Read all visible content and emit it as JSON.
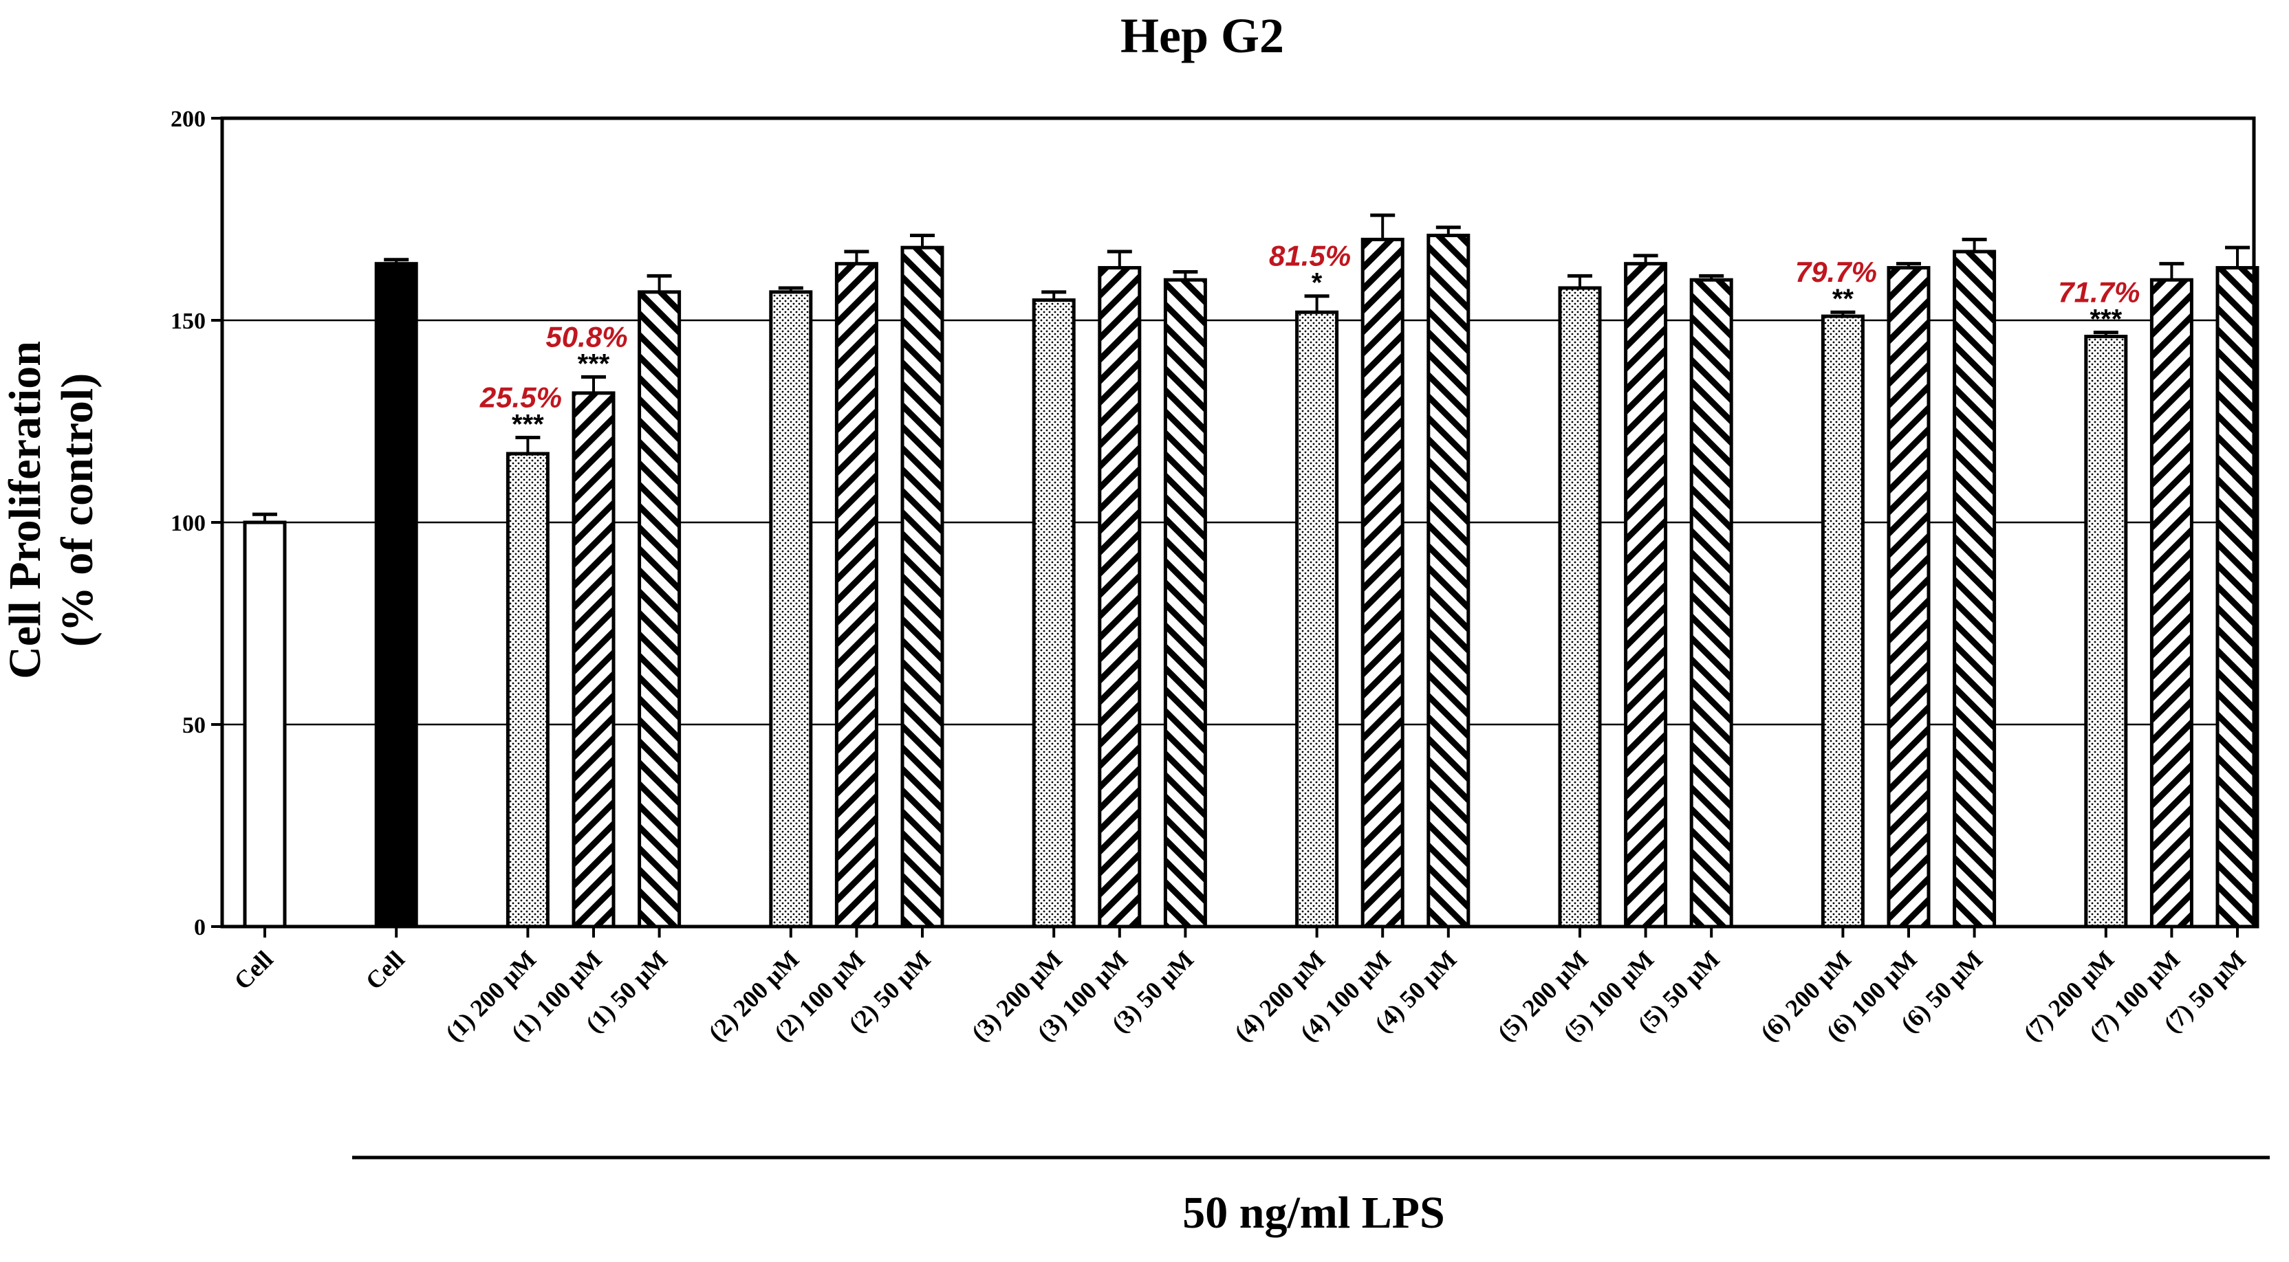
{
  "chart_data": {
    "type": "bar",
    "title": "Hep G2",
    "ylabel_line1": "Cell Proliferation",
    "ylabel_line2": "(% of control)",
    "group_label": "50 ng/ml LPS",
    "ylim": [
      0,
      200
    ],
    "yticks": [
      0,
      50,
      100,
      150,
      200
    ],
    "grid": true,
    "colors": {
      "bar_edge": "#000000",
      "annotation": "#c0161f",
      "grid": "#000000"
    },
    "categories": [
      "Cell",
      "Cell",
      "(1) 200 μM",
      "(1) 100 μM",
      "(1) 50 μM",
      "(2) 200 μM",
      "(2) 100 μM",
      "(2) 50 μM",
      "(3) 200 μM",
      "(3) 100 μM",
      "(3) 50 μM",
      "(4) 200 μM",
      "(4) 100 μM",
      "(4) 50 μM",
      "(5) 200 μM",
      "(5) 100 μM",
      "(5) 50 μM",
      "(6) 200 μM",
      "(6) 100 μM",
      "(6) 50 μM",
      "(7) 200 μM",
      "(7) 100 μM",
      "(7) 50 μM"
    ],
    "values": [
      100,
      164,
      117,
      132,
      157,
      157,
      164,
      168,
      155,
      163,
      160,
      152,
      170,
      171,
      158,
      164,
      160,
      151,
      163,
      167,
      146,
      160,
      163
    ],
    "errors": [
      2,
      1,
      4,
      4,
      4,
      1,
      3,
      3,
      2,
      4,
      2,
      4,
      6,
      2,
      3,
      2,
      1,
      1,
      1,
      3,
      1,
      4,
      5
    ],
    "patterns": [
      "white",
      "black",
      "dotted",
      "hatch-fwd",
      "hatch-back",
      "dotted",
      "hatch-fwd",
      "hatch-back",
      "dotted",
      "hatch-fwd",
      "hatch-back",
      "dotted",
      "hatch-fwd",
      "hatch-back",
      "dotted",
      "hatch-fwd",
      "hatch-back",
      "dotted",
      "hatch-fwd",
      "hatch-back",
      "dotted",
      "hatch-fwd",
      "hatch-back"
    ],
    "significance": [
      "",
      "",
      "***",
      "***",
      "",
      "",
      "",
      "",
      "",
      "",
      "",
      "*",
      "",
      "",
      "",
      "",
      "",
      "**",
      "",
      "",
      "***",
      "",
      ""
    ],
    "annotations": [
      {
        "bar_index": 2,
        "text": "25.5%"
      },
      {
        "bar_index": 3,
        "text": "50.8%"
      },
      {
        "bar_index": 11,
        "text": "81.5%"
      },
      {
        "bar_index": 17,
        "text": "79.7%"
      },
      {
        "bar_index": 20,
        "text": "71.7%"
      }
    ]
  }
}
